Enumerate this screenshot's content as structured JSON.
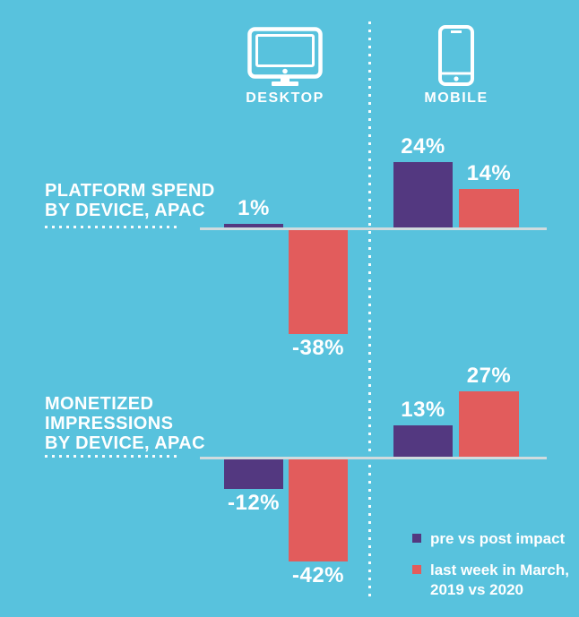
{
  "colors": {
    "background": "#58C2DD",
    "purple": "#533880",
    "red": "#E25C5C",
    "baseline": "#D0DBDE",
    "text": "#FFFFFF"
  },
  "columns": {
    "desktop": "DESKTOP",
    "mobile": "MOBILE"
  },
  "rows": [
    {
      "title_lines": [
        "PLATFORM SPEND",
        "BY DEVICE, APAC"
      ],
      "bars": [
        {
          "column": "desktop",
          "series_index": 0,
          "value": 1,
          "label": "1%"
        },
        {
          "column": "desktop",
          "series_index": 1,
          "value": -38,
          "label": "-38%"
        },
        {
          "column": "mobile",
          "series_index": 0,
          "value": 24,
          "label": "24%"
        },
        {
          "column": "mobile",
          "series_index": 1,
          "value": 14,
          "label": "14%"
        }
      ]
    },
    {
      "title_lines": [
        "MONETIZED",
        "IMPRESSIONS",
        "BY DEVICE, APAC"
      ],
      "bars": [
        {
          "column": "desktop",
          "series_index": 0,
          "value": -12,
          "label": "-12%"
        },
        {
          "column": "desktop",
          "series_index": 1,
          "value": -42,
          "label": "-42%"
        },
        {
          "column": "mobile",
          "series_index": 0,
          "value": 13,
          "label": "13%"
        },
        {
          "column": "mobile",
          "series_index": 1,
          "value": 27,
          "label": "27%"
        }
      ]
    }
  ],
  "legend": {
    "items": [
      {
        "label": "pre vs post impact",
        "color": "#533880"
      },
      {
        "label": "last week in March,\n2019 vs 2020",
        "color": "#E25C5C"
      }
    ]
  },
  "chart_data": {
    "type": "bar",
    "unit": "percent",
    "categories": [
      "Desktop",
      "Mobile"
    ],
    "charts": [
      {
        "title": "PLATFORM SPEND BY DEVICE, APAC",
        "series": [
          {
            "name": "pre vs post impact",
            "values": [
              1,
              24
            ]
          },
          {
            "name": "last week in March, 2019 vs 2020",
            "values": [
              -38,
              14
            ]
          }
        ]
      },
      {
        "title": "MONETIZED IMPRESSIONS BY DEVICE, APAC",
        "series": [
          {
            "name": "pre vs post impact",
            "values": [
              -12,
              13
            ]
          },
          {
            "name": "last week in March, 2019 vs 2020",
            "values": [
              -42,
              27
            ]
          }
        ]
      }
    ],
    "legend_position": "bottom-right",
    "grid": false,
    "baseline": 0
  }
}
